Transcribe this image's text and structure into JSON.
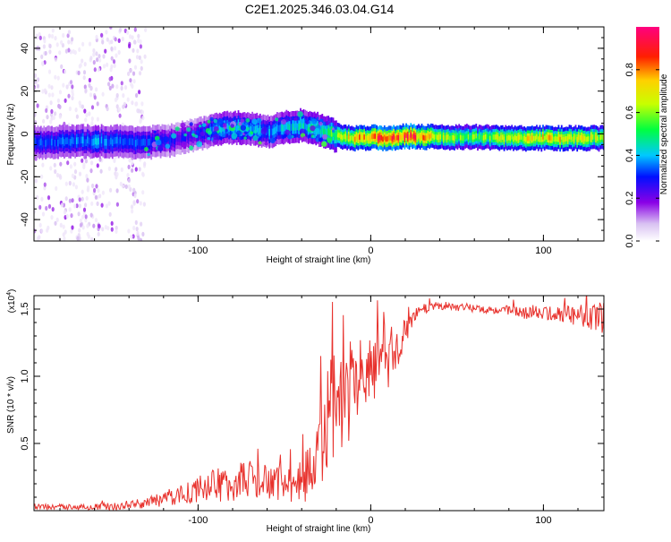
{
  "title": "C2E1.2025.346.03.04.G14",
  "colors": {
    "snr_line": "#e8322d",
    "axis": "#000000"
  },
  "chart_data": [
    {
      "type": "heatmap",
      "title": "C2E1.2025.346.03.04.G14",
      "xlabel": "Height of straight line (km)",
      "ylabel": "Frequency (Hz)",
      "xlim": [
        -195,
        135
      ],
      "ylim": [
        -50,
        50
      ],
      "xticks": [
        -100,
        0,
        100
      ],
      "yticks": [
        -40,
        -20,
        0,
        20,
        40
      ],
      "colorbar": {
        "label": "Normalized spectral amplitude",
        "range": [
          0.0,
          1.0
        ],
        "ticks": [
          "0.0",
          "0.2",
          "0.4",
          "0.6",
          "0.8"
        ],
        "tick_values": [
          0.0,
          0.2,
          0.4,
          0.6,
          0.8
        ],
        "colormap": [
          "#ffffff",
          "#d9c2f2",
          "#8a00e6",
          "#0010ff",
          "#00c8ff",
          "#00ff40",
          "#c8ff00",
          "#ffd000",
          "#ff2000",
          "#ff007f"
        ]
      },
      "ridge": {
        "x": [
          -195,
          -170,
          -150,
          -130,
          -115,
          -100,
          -90,
          -80,
          -70,
          -60,
          -50,
          -40,
          -30,
          -20,
          -10,
          0,
          10,
          20,
          40,
          60,
          80,
          100,
          120,
          135
        ],
        "freq": [
          -4,
          -3.5,
          -3.5,
          -4,
          -3,
          0,
          2,
          3,
          2.5,
          1,
          3,
          4,
          2,
          -1,
          -2,
          -1.5,
          -2,
          -1,
          -1.5,
          -1.5,
          -2,
          -2,
          -2,
          -2
        ],
        "amplitude": [
          0.35,
          0.4,
          0.4,
          0.35,
          0.3,
          0.3,
          0.4,
          0.45,
          0.45,
          0.4,
          0.45,
          0.45,
          0.5,
          0.6,
          0.75,
          0.85,
          0.85,
          0.9,
          0.65,
          0.6,
          0.65,
          0.75,
          0.7,
          0.65
        ]
      },
      "noise_region_km": [
        -195,
        -130
      ]
    },
    {
      "type": "line",
      "xlabel": "Height of straight line (km)",
      "ylabel": "SNR (10 * v/v)",
      "y_multiplier": "(x10",
      "y_multiplier_exp": "4",
      "y_multiplier_close": ")",
      "xlim": [
        -195,
        135
      ],
      "ylim": [
        0,
        1.6
      ],
      "xticks": [
        -100,
        0,
        100
      ],
      "yticks": [
        0.5,
        1.0,
        1.5
      ],
      "ytick_labels": [
        "0.5",
        "1.0",
        "1.5"
      ],
      "series": [
        {
          "name": "SNR",
          "x": [
            -195,
            -170,
            -150,
            -140,
            -130,
            -120,
            -110,
            -100,
            -90,
            -80,
            -75,
            -70,
            -60,
            -50,
            -40,
            -35,
            -30,
            -25,
            -20,
            -15,
            -10,
            -5,
            0,
            5,
            10,
            15,
            20,
            25,
            30,
            35,
            40,
            50,
            60,
            70,
            80,
            90,
            95,
            100,
            110,
            120,
            130,
            135
          ],
          "center": [
            0.03,
            0.03,
            0.03,
            0.05,
            0.06,
            0.09,
            0.13,
            0.17,
            0.2,
            0.22,
            0.25,
            0.24,
            0.22,
            0.2,
            0.24,
            0.32,
            0.45,
            0.65,
            0.85,
            0.9,
            0.95,
            1.0,
            1.05,
            1.1,
            1.15,
            1.22,
            1.35,
            1.45,
            1.5,
            1.52,
            1.53,
            1.52,
            1.51,
            1.5,
            1.49,
            1.48,
            1.49,
            1.47,
            1.47,
            1.46,
            1.45,
            1.45
          ],
          "spread": [
            0.02,
            0.02,
            0.03,
            0.03,
            0.04,
            0.06,
            0.08,
            0.1,
            0.12,
            0.14,
            0.15,
            0.15,
            0.13,
            0.12,
            0.16,
            0.25,
            0.35,
            0.45,
            0.45,
            0.4,
            0.35,
            0.3,
            0.25,
            0.25,
            0.25,
            0.18,
            0.1,
            0.06,
            0.04,
            0.03,
            0.03,
            0.03,
            0.03,
            0.03,
            0.04,
            0.05,
            0.05,
            0.05,
            0.06,
            0.08,
            0.1,
            0.12
          ]
        }
      ]
    }
  ]
}
